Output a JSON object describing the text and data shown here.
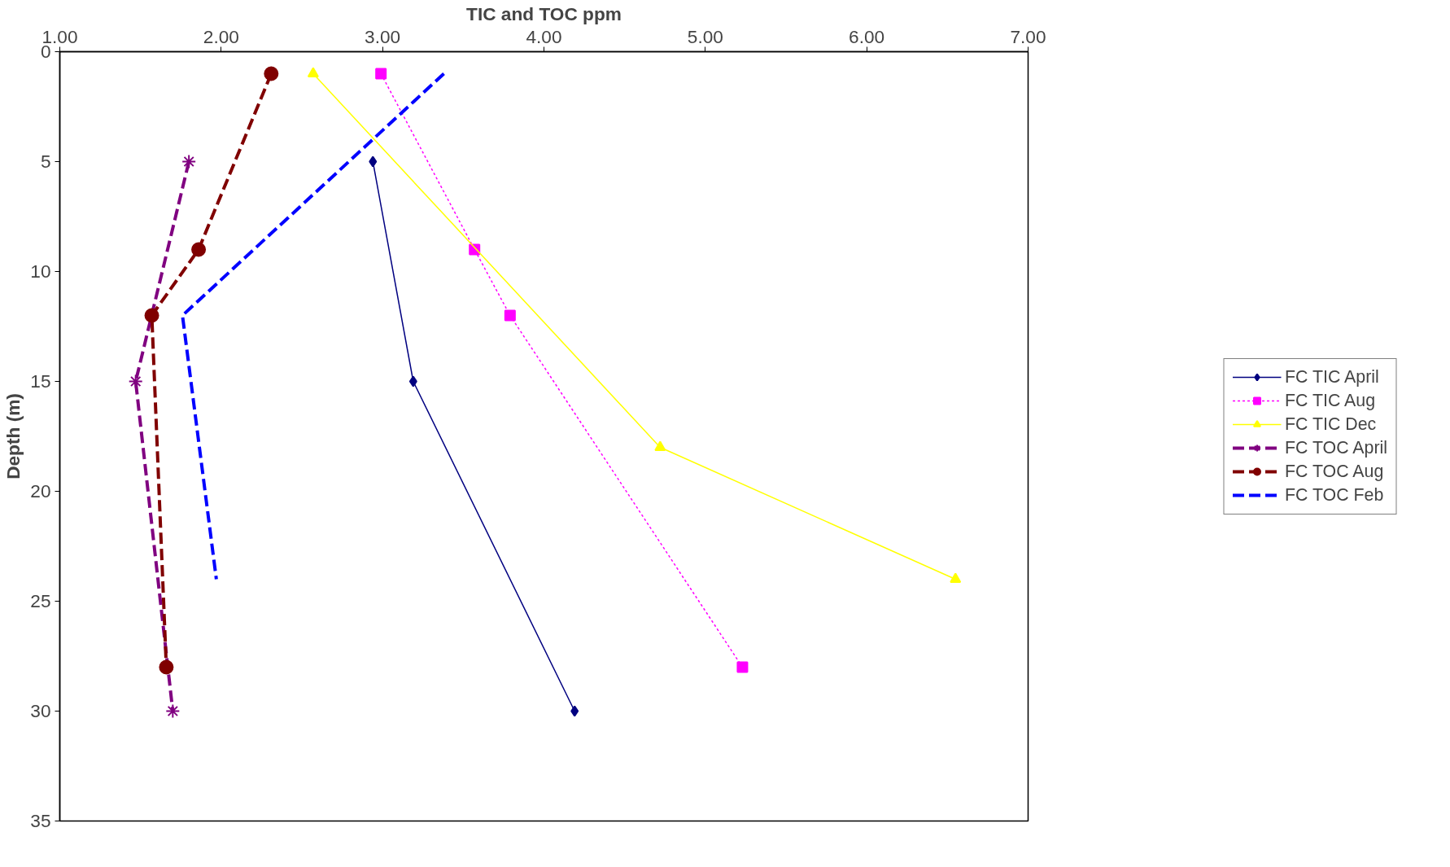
{
  "chart_data": {
    "type": "line",
    "xlabel": "TIC and TOC ppm",
    "ylabel": "Depth (m)",
    "xlim": [
      1,
      7
    ],
    "xticks": [
      {
        "value": 1,
        "label": "1.00"
      },
      {
        "value": 2,
        "label": "2.00"
      },
      {
        "value": 3,
        "label": "3.00"
      },
      {
        "value": 4,
        "label": "4.00"
      },
      {
        "value": 5,
        "label": "5.00"
      },
      {
        "value": 6,
        "label": "6.00"
      },
      {
        "value": 7,
        "label": "7.00"
      }
    ],
    "ylim": [
      35,
      0
    ],
    "yticks": [
      0,
      5,
      10,
      15,
      20,
      25,
      30,
      35
    ],
    "grid": false,
    "legend": "right",
    "series": [
      {
        "name": "FC TIC April",
        "color": "#000080",
        "marker": "diamond",
        "line_style": "solid",
        "x": [
          2.94,
          3.19,
          4.19
        ],
        "values": [
          5,
          15,
          30
        ]
      },
      {
        "name": "FC TIC Aug",
        "color": "#ff00ff",
        "marker": "square",
        "line_style": "dotted",
        "x": [
          2.99,
          3.57,
          3.79,
          5.23
        ],
        "values": [
          1,
          9,
          12,
          28
        ]
      },
      {
        "name": "FC TIC Dec",
        "color": "#ffff00",
        "marker": "triangle",
        "line_style": "solid",
        "x": [
          2.57,
          4.72,
          6.55
        ],
        "values": [
          1,
          18,
          24
        ]
      },
      {
        "name": "FC TOC April",
        "color": "#800080",
        "marker": "cross",
        "line_style": "dashed",
        "x": [
          1.8,
          1.47,
          1.7
        ],
        "values": [
          5,
          15,
          30
        ]
      },
      {
        "name": "FC TOC Aug",
        "color": "#800000",
        "marker": "circle",
        "line_style": "dashed",
        "x": [
          2.31,
          1.86,
          1.57,
          1.66
        ],
        "values": [
          1,
          9,
          12,
          28
        ]
      },
      {
        "name": "FC TOC Feb",
        "color": "#0000ff",
        "marker": "none",
        "line_style": "dashed",
        "x": [
          3.38,
          1.76,
          1.97
        ],
        "values": [
          1,
          12,
          24
        ]
      }
    ]
  }
}
